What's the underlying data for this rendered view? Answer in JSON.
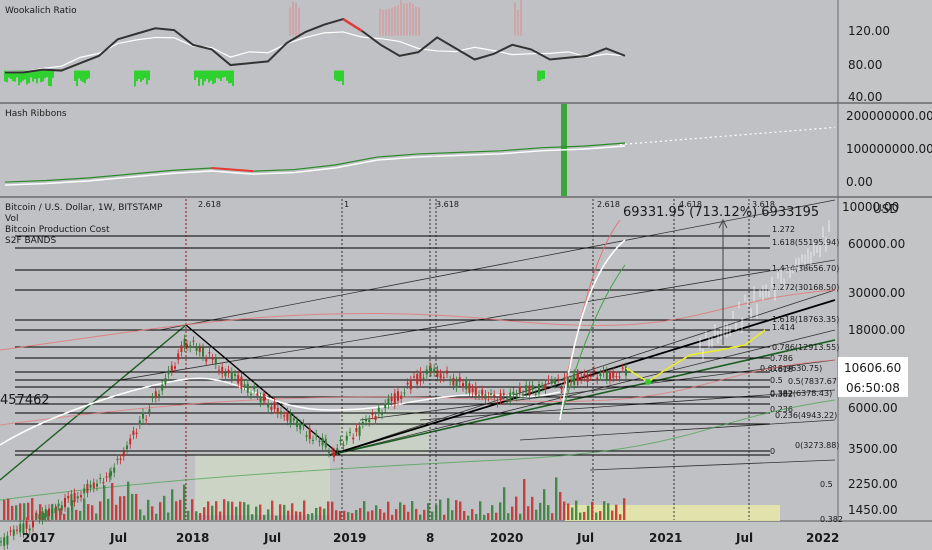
{
  "colors": {
    "background": "#bfc1c4",
    "axis_bg": "#f1f1f1",
    "up": "#c62828",
    "down": "#2e7d32",
    "green_line": "#2fd12f",
    "red_line": "#e53935",
    "white": "#ffffff",
    "yellow": "#ecef22",
    "black": "#000000"
  },
  "panes": {
    "wookalich": {
      "title": "Wookalich Ratio",
      "ticks": [
        "120.00",
        "80.00",
        "40.00"
      ]
    },
    "hash": {
      "title": "Hash Ribbons",
      "ticks": [
        "200000000.00",
        "100000000.00",
        "0.00"
      ]
    },
    "main": {
      "legend": [
        "Bitcoin / U.S. Dollar, 1W, BITSTAMP",
        "Vol",
        "Bitcoin Production Cost",
        "S2F BANDS"
      ],
      "ticks": [
        "10000.00",
        "60000.00",
        "30000.00",
        "18000.00",
        "6000.00",
        "3500.00",
        "2250.00",
        "1450.00"
      ],
      "currency": "USD",
      "price_label": "10606.60",
      "countdown_label": "06:50:08",
      "measure_label": "69331.95 (713.12%) 6933195",
      "left_value": "457462",
      "fib_levels": [
        "1.272",
        "1.618(55195.94)",
        "1.414(38656.70)",
        "1.272(30168.50)",
        "1.618(18763.35)",
        "1.414",
        "0.786(12913.55)",
        "0.786",
        "0.618(9630.75)",
        "0.618",
        "0.5",
        "0.5(7837.67)",
        "0.382(6378.43)",
        "0.382",
        "0.236",
        "0.236(4943.22)",
        "0(3273.88)",
        "0",
        "0.5",
        "0.382"
      ],
      "fib_headers": [
        "2.618",
        "1",
        "3.618",
        "2.618",
        "4.618",
        "3.618"
      ]
    }
  },
  "time_axis": {
    "labels": [
      "2017",
      "Jul",
      "2018",
      "Jul",
      "2019",
      "8",
      "2020",
      "Jul",
      "2021",
      "Jul",
      "2022"
    ]
  },
  "chart_data": [
    {
      "type": "line",
      "title": "Wookalich Ratio",
      "series": [
        {
          "values": [
            70,
            70,
            73,
            72,
            80,
            88,
            106,
            112,
            118,
            116,
            100,
            95,
            78,
            80,
            82,
            102,
            114,
            122,
            128,
            115,
            100,
            88,
            92,
            108,
            96,
            84,
            90,
            100,
            95,
            84,
            86,
            88,
            96,
            88
          ]
        }
      ],
      "ylim": [
        40,
        140
      ]
    },
    {
      "type": "line",
      "title": "Hash Ribbons",
      "series": [
        {
          "values": [
            15000000,
            20000000,
            28000000,
            40000000,
            52000000,
            60000000,
            50000000,
            55000000,
            70000000,
            95000000,
            105000000,
            110000000,
            115000000,
            125000000,
            130000000,
            140000000
          ]
        }
      ],
      "ylim": [
        -20000000,
        220000000
      ]
    },
    {
      "type": "line",
      "title": "Bitcoin / U.S. Dollar, 1W, BITSTAMP",
      "x": [
        "2017",
        "Jul",
        "2018",
        "Jul",
        "2019",
        "8",
        "2020",
        "Jul",
        "2021",
        "Jul",
        "2022"
      ],
      "series": [
        {
          "values": [
            1000,
            2500,
            16000,
            7000,
            3500,
            11000,
            7200,
            9500,
            10606.6,
            18000,
            21000
          ]
        }
      ],
      "ylim": [
        1350,
        110000
      ],
      "scale": "log"
    }
  ]
}
